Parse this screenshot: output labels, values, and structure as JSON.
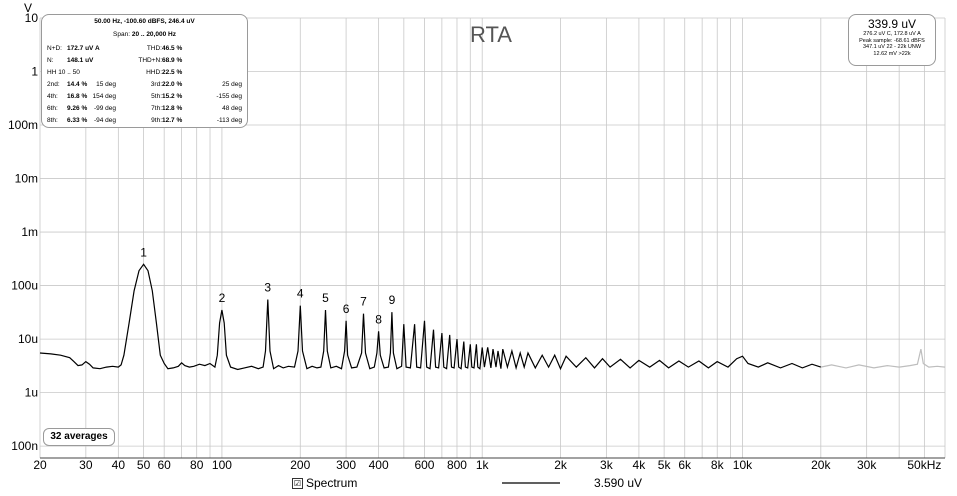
{
  "chart_data": {
    "type": "line",
    "title": "RTA",
    "y_unit_label": "V",
    "x_scale": "log",
    "y_scale": "log",
    "xlim": [
      20,
      60000
    ],
    "ylim": [
      6e-08,
      10
    ],
    "x_tick_labels": [
      {
        "v": 20,
        "t": "20"
      },
      {
        "v": 30,
        "t": "30"
      },
      {
        "v": 40,
        "t": "40"
      },
      {
        "v": 50,
        "t": "50"
      },
      {
        "v": 60,
        "t": "60"
      },
      {
        "v": 80,
        "t": "80"
      },
      {
        "v": 100,
        "t": "100"
      },
      {
        "v": 200,
        "t": "200"
      },
      {
        "v": 300,
        "t": "300"
      },
      {
        "v": 400,
        "t": "400"
      },
      {
        "v": 600,
        "t": "600"
      },
      {
        "v": 800,
        "t": "800"
      },
      {
        "v": 1000,
        "t": "1k"
      },
      {
        "v": 2000,
        "t": "2k"
      },
      {
        "v": 3000,
        "t": "3k"
      },
      {
        "v": 4000,
        "t": "4k"
      },
      {
        "v": 5000,
        "t": "5k"
      },
      {
        "v": 6000,
        "t": "6k"
      },
      {
        "v": 8000,
        "t": "8k"
      },
      {
        "v": 10000,
        "t": "10k"
      },
      {
        "v": 20000,
        "t": "20k"
      },
      {
        "v": 30000,
        "t": "30k"
      },
      {
        "v": 50000,
        "t": "50kHz"
      }
    ],
    "y_tick_labels": [
      {
        "v": 10,
        "t": "10"
      },
      {
        "v": 1,
        "t": "1"
      },
      {
        "v": 0.1,
        "t": "100m"
      },
      {
        "v": 0.01,
        "t": "10m"
      },
      {
        "v": 0.001,
        "t": "1m"
      },
      {
        "v": 0.0001,
        "t": "100u"
      },
      {
        "v": 1e-05,
        "t": "10u"
      },
      {
        "v": 1e-06,
        "t": "1u"
      },
      {
        "v": 1e-07,
        "t": "100n"
      }
    ],
    "grid": true,
    "noise_floor_v": 3e-06,
    "band_limit_hz": 20000,
    "harmonic_labels": [
      {
        "n": "1",
        "f": 50,
        "v": 0.00025
      },
      {
        "n": "2",
        "f": 100,
        "v": 3.5e-05
      },
      {
        "n": "3",
        "f": 150,
        "v": 5.5e-05
      },
      {
        "n": "4",
        "f": 200,
        "v": 4.2e-05
      },
      {
        "n": "5",
        "f": 250,
        "v": 3.5e-05
      },
      {
        "n": "6",
        "f": 300,
        "v": 2.2e-05
      },
      {
        "n": "7",
        "f": 350,
        "v": 3e-05
      },
      {
        "n": "8",
        "f": 400,
        "v": 1.4e-05
      },
      {
        "n": "9",
        "f": 450,
        "v": 3.2e-05
      }
    ],
    "series": [
      {
        "name": "Spectrum",
        "color": "#000000",
        "out_of_band_color": "#bdbdbd",
        "points": [
          [
            20,
            5.5e-06
          ],
          [
            22,
            5.3e-06
          ],
          [
            24,
            5e-06
          ],
          [
            26,
            4.5e-06
          ],
          [
            27,
            3.8e-06
          ],
          [
            28,
            3.2e-06
          ],
          [
            29,
            3.3e-06
          ],
          [
            30,
            3.8e-06
          ],
          [
            31,
            3.4e-06
          ],
          [
            32,
            2.9e-06
          ],
          [
            34,
            2.8e-06
          ],
          [
            36,
            3e-06
          ],
          [
            38,
            3.1e-06
          ],
          [
            40,
            3e-06
          ],
          [
            41,
            3.3e-06
          ],
          [
            42,
            5e-06
          ],
          [
            44,
            2e-05
          ],
          [
            46,
            8e-05
          ],
          [
            48,
            0.00019
          ],
          [
            50,
            0.00025
          ],
          [
            52,
            0.00019
          ],
          [
            54,
            8e-05
          ],
          [
            56,
            2e-05
          ],
          [
            58,
            5e-06
          ],
          [
            60,
            3.5e-06
          ],
          [
            62,
            2.8e-06
          ],
          [
            65,
            2.9e-06
          ],
          [
            68,
            3.1e-06
          ],
          [
            70,
            3.6e-06
          ],
          [
            72,
            3.2e-06
          ],
          [
            75,
            3e-06
          ],
          [
            78,
            3.1e-06
          ],
          [
            82,
            3.4e-06
          ],
          [
            86,
            3.2e-06
          ],
          [
            90,
            3.5e-06
          ],
          [
            94,
            3e-06
          ],
          [
            96,
            5e-06
          ],
          [
            98,
            2e-05
          ],
          [
            100,
            3.5e-05
          ],
          [
            102,
            2e-05
          ],
          [
            104,
            5e-06
          ],
          [
            108,
            3e-06
          ],
          [
            115,
            2.7e-06
          ],
          [
            122,
            2.9e-06
          ],
          [
            130,
            3.1e-06
          ],
          [
            138,
            2.8e-06
          ],
          [
            144,
            3e-06
          ],
          [
            147,
            6e-06
          ],
          [
            150,
            5.5e-05
          ],
          [
            153,
            6e-06
          ],
          [
            158,
            2.8e-06
          ],
          [
            165,
            3.2e-06
          ],
          [
            172,
            2.9e-06
          ],
          [
            180,
            3.1e-06
          ],
          [
            190,
            3e-06
          ],
          [
            196,
            6e-06
          ],
          [
            200,
            4.2e-05
          ],
          [
            204,
            6e-06
          ],
          [
            212,
            2.8e-06
          ],
          [
            222,
            3.1e-06
          ],
          [
            232,
            2.9e-06
          ],
          [
            240,
            3e-06
          ],
          [
            246,
            6e-06
          ],
          [
            250,
            3.5e-05
          ],
          [
            254,
            6e-06
          ],
          [
            262,
            2.9e-06
          ],
          [
            275,
            3.1e-06
          ],
          [
            288,
            2.8e-06
          ],
          [
            296,
            6e-06
          ],
          [
            300,
            2.2e-05
          ],
          [
            304,
            5e-06
          ],
          [
            315,
            2.9e-06
          ],
          [
            330,
            3e-06
          ],
          [
            344,
            5.5e-06
          ],
          [
            350,
            3e-05
          ],
          [
            356,
            5.5e-06
          ],
          [
            370,
            2.8e-06
          ],
          [
            385,
            3e-06
          ],
          [
            394,
            5.5e-06
          ],
          [
            400,
            1.4e-05
          ],
          [
            406,
            5e-06
          ],
          [
            420,
            2.9e-06
          ],
          [
            436,
            3e-06
          ],
          [
            444,
            5.5e-06
          ],
          [
            450,
            3.2e-05
          ],
          [
            456,
            5.5e-06
          ],
          [
            470,
            2.8e-06
          ],
          [
            490,
            3.1e-06
          ],
          [
            500,
            1.9e-05
          ],
          [
            510,
            3e-06
          ],
          [
            530,
            2.9e-06
          ],
          [
            550,
            1.9e-05
          ],
          [
            560,
            3e-06
          ],
          [
            580,
            2.9e-06
          ],
          [
            600,
            2.2e-05
          ],
          [
            612,
            3e-06
          ],
          [
            630,
            2.8e-06
          ],
          [
            650,
            1.5e-05
          ],
          [
            662,
            3e-06
          ],
          [
            680,
            2.9e-06
          ],
          [
            700,
            1.3e-05
          ],
          [
            712,
            3e-06
          ],
          [
            730,
            2.8e-06
          ],
          [
            750,
            1.2e-05
          ],
          [
            762,
            3e-06
          ],
          [
            780,
            2.9e-06
          ],
          [
            800,
            1e-05
          ],
          [
            812,
            3e-06
          ],
          [
            830,
            2.8e-06
          ],
          [
            850,
            9e-06
          ],
          [
            862,
            3e-06
          ],
          [
            880,
            2.9e-06
          ],
          [
            900,
            8e-06
          ],
          [
            912,
            3e-06
          ],
          [
            930,
            2.9e-06
          ],
          [
            950,
            8e-06
          ],
          [
            962,
            3e-06
          ],
          [
            980,
            2.8e-06
          ],
          [
            1000,
            7e-06
          ],
          [
            1020,
            3e-06
          ],
          [
            1050,
            7e-06
          ],
          [
            1080,
            2.9e-06
          ],
          [
            1100,
            6.5e-06
          ],
          [
            1130,
            3e-06
          ],
          [
            1150,
            6e-06
          ],
          [
            1180,
            2.8e-06
          ],
          [
            1200,
            6.5e-06
          ],
          [
            1250,
            3e-06
          ],
          [
            1300,
            6e-06
          ],
          [
            1350,
            2.9e-06
          ],
          [
            1400,
            5.5e-06
          ],
          [
            1450,
            3e-06
          ],
          [
            1500,
            5.5e-06
          ],
          [
            1600,
            2.9e-06
          ],
          [
            1700,
            5e-06
          ],
          [
            1800,
            3e-06
          ],
          [
            1900,
            5e-06
          ],
          [
            2000,
            2.8e-06
          ],
          [
            2100,
            4.8e-06
          ],
          [
            2300,
            3e-06
          ],
          [
            2500,
            4.5e-06
          ],
          [
            2700,
            2.9e-06
          ],
          [
            2900,
            4.3e-06
          ],
          [
            3100,
            3e-06
          ],
          [
            3400,
            4.2e-06
          ],
          [
            3700,
            2.9e-06
          ],
          [
            4000,
            4e-06
          ],
          [
            4400,
            3e-06
          ],
          [
            4800,
            4e-06
          ],
          [
            5200,
            2.9e-06
          ],
          [
            5700,
            3.9e-06
          ],
          [
            6200,
            3e-06
          ],
          [
            6800,
            3.9e-06
          ],
          [
            7400,
            2.9e-06
          ],
          [
            8000,
            3.8e-06
          ],
          [
            8800,
            3e-06
          ],
          [
            9500,
            4.3e-06
          ],
          [
            10000,
            4.8e-06
          ],
          [
            10500,
            3.5e-06
          ],
          [
            11500,
            3e-06
          ],
          [
            12500,
            3.6e-06
          ],
          [
            14000,
            2.9e-06
          ],
          [
            15500,
            3.5e-06
          ],
          [
            17000,
            2.9e-06
          ],
          [
            18500,
            3.4e-06
          ],
          [
            20000,
            3e-06
          ],
          [
            22000,
            3.3e-06
          ],
          [
            25000,
            2.9e-06
          ],
          [
            28000,
            3.3e-06
          ],
          [
            32000,
            2.9e-06
          ],
          [
            36000,
            3.2e-06
          ],
          [
            40000,
            3e-06
          ],
          [
            44000,
            3.2e-06
          ],
          [
            47000,
            3.4e-06
          ],
          [
            48500,
            6.5e-06
          ],
          [
            49500,
            3.5e-06
          ],
          [
            52000,
            3e-06
          ],
          [
            56000,
            3.1e-06
          ],
          [
            60000,
            3e-06
          ]
        ]
      }
    ]
  },
  "info_box": {
    "title": "50.00 Hz, -100.60 dBFS, 246.4 uV",
    "span_label": "Span:",
    "span_value": "20 .. 20,000 Hz",
    "rows": [
      {
        "l1": "N+D:",
        "v1": "172.7 uV A",
        "l2": "THD:",
        "v2": "46.5 %",
        "p2": ""
      },
      {
        "l1": "N:",
        "v1": "148.1 uV",
        "l2": "THD+N:",
        "v2": "68.9 %",
        "p2": ""
      },
      {
        "l1": "HH 10 .. 50",
        "v1": "",
        "l2": "HHD:",
        "v2": "22.5 %",
        "p2": ""
      },
      {
        "l1": "2nd:",
        "v1": "14.4 %",
        "p1": "15 deg",
        "l2": "3rd:",
        "v2": "22.0 %",
        "p2": "25 deg"
      },
      {
        "l1": "4th:",
        "v1": "16.8 %",
        "p1": "154 deg",
        "l2": "5th:",
        "v2": "15.2 %",
        "p2": "-155 deg"
      },
      {
        "l1": "6th:",
        "v1": "9.26 %",
        "p1": "-99 deg",
        "l2": "7th:",
        "v2": "12.8 %",
        "p2": "48 deg"
      },
      {
        "l1": "8th:",
        "v1": "6.33 %",
        "p1": "-94 deg",
        "l2": "9th:",
        "v2": "12.7 %",
        "p2": "-113 deg"
      }
    ]
  },
  "readout": {
    "main": "339.9 uV",
    "line1": "276.2 uV C, 172.8 uV A",
    "line2": "Peak sample: -68.61 dBFS",
    "line3": "347.1 uV 22 - 22k UNW",
    "line4": "12.62 mV >22k"
  },
  "averages_label": "32 averages",
  "legend": {
    "spectrum_label": "Spectrum",
    "checked": true,
    "check_glyph": "☑",
    "cursor_value": "3.590 uV"
  },
  "colors": {
    "grid": "#c8c8c8",
    "trace": "#000000",
    "trace_out_of_band": "#bdbdbd",
    "box_border": "#9a9a9a"
  }
}
